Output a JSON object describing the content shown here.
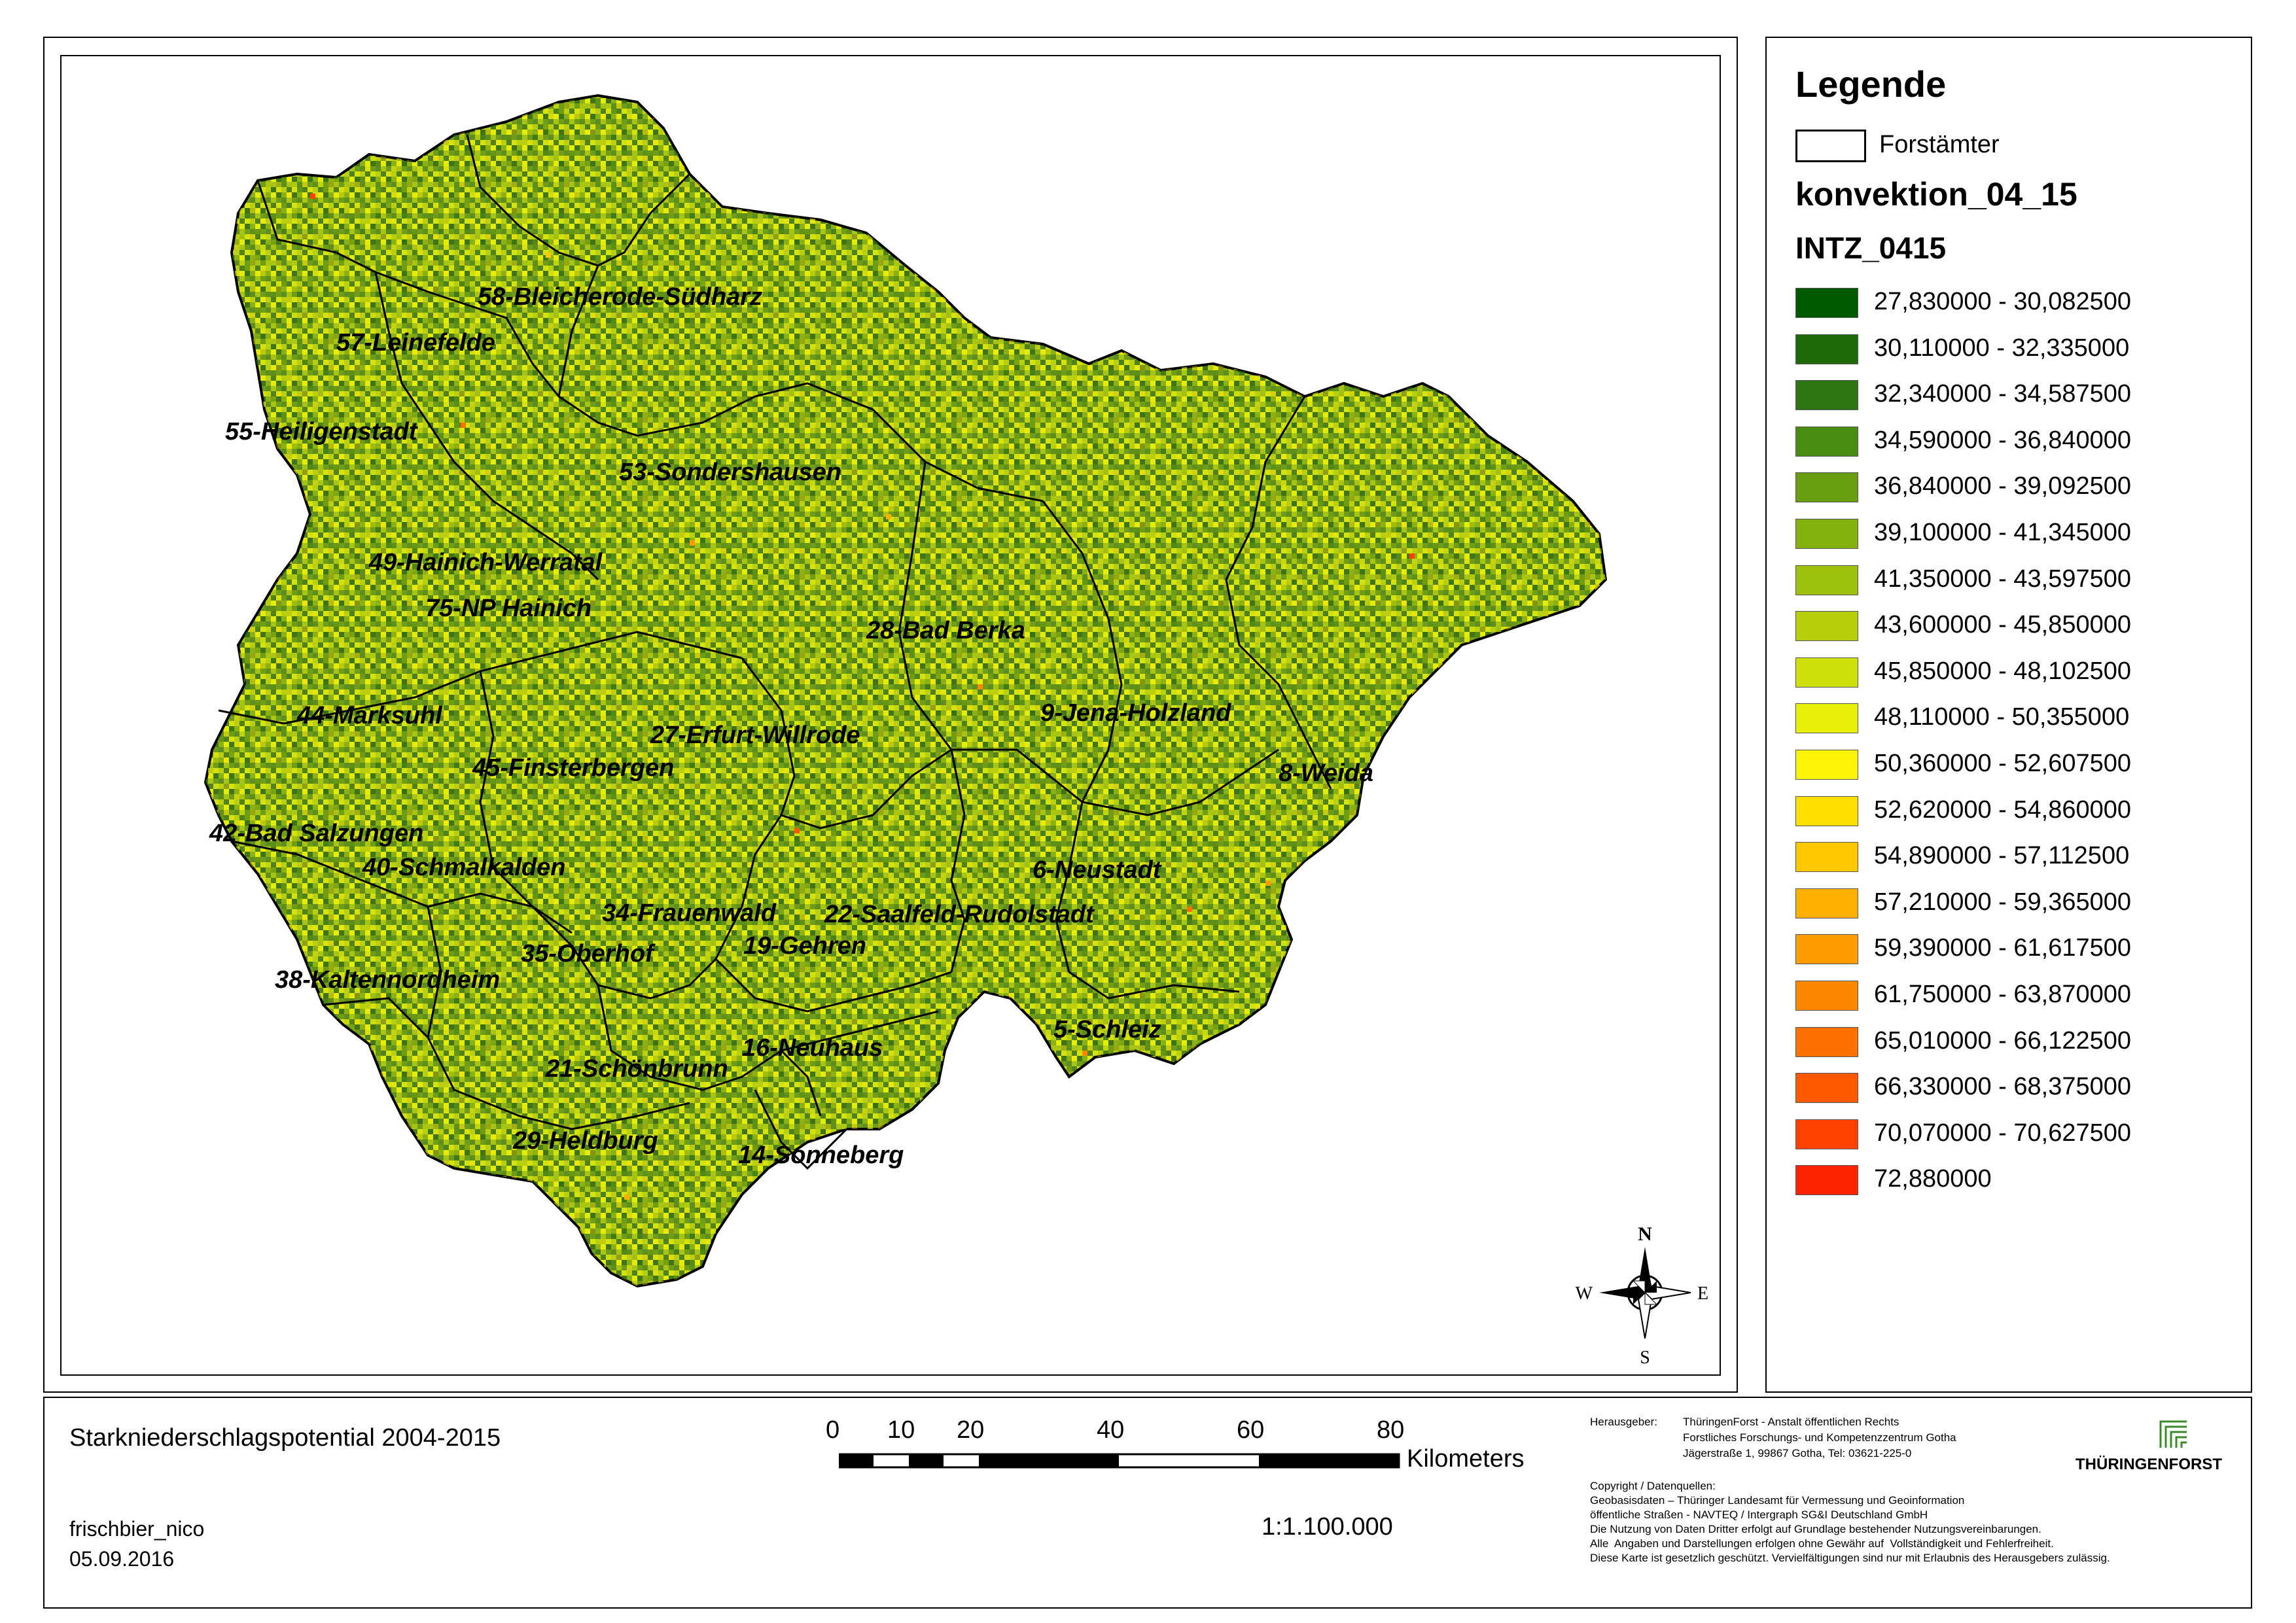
{
  "legend": {
    "title": "Legende",
    "outline_label": "Forstämter",
    "layer_name": "konvektion_04_15",
    "field_name": "INTZ_0415",
    "classes": [
      {
        "label": "27,830000 - 30,082500",
        "color": "#005a00"
      },
      {
        "label": "30,110000 - 32,335000",
        "color": "#1e6a0a"
      },
      {
        "label": "32,340000 - 34,587500",
        "color": "#2f7612"
      },
      {
        "label": "34,590000 - 36,840000",
        "color": "#4a8c14"
      },
      {
        "label": "36,840000 - 39,092500",
        "color": "#689f12"
      },
      {
        "label": "39,100000 - 41,345000",
        "color": "#84b10e"
      },
      {
        "label": "41,350000 - 43,597500",
        "color": "#9cc00c"
      },
      {
        "label": "43,600000 - 45,850000",
        "color": "#b4cf0a"
      },
      {
        "label": "45,850000 - 48,102500",
        "color": "#cee00a"
      },
      {
        "label": "48,110000 - 50,355000",
        "color": "#e8ef08"
      },
      {
        "label": "50,360000 - 52,607500",
        "color": "#fbf406"
      },
      {
        "label": "52,620000 - 54,860000",
        "color": "#fde000"
      },
      {
        "label": "54,890000 - 57,112500",
        "color": "#fdc800"
      },
      {
        "label": "57,210000 - 59,365000",
        "color": "#fdb000"
      },
      {
        "label": "59,390000 - 61,617500",
        "color": "#fd9c00"
      },
      {
        "label": "61,750000 - 63,870000",
        "color": "#fd8700"
      },
      {
        "label": "65,010000 - 66,122500",
        "color": "#fd7100"
      },
      {
        "label": "66,330000 - 68,375000",
        "color": "#fd5a00"
      },
      {
        "label": "70,070000 - 70,627500",
        "color": "#fd4200"
      },
      {
        "label": "72,880000",
        "color": "#fd2200"
      }
    ]
  },
  "map": {
    "districts": [
      "58-Bleicherode-Südharz",
      "57-Leinefelde",
      "55-Heiligenstadt",
      "53-Sondershausen",
      "49-Hainich-Werratal",
      "75-NP Hainich",
      "28-Bad Berka",
      "44-Marksuhl",
      "27-Erfurt-Willrode",
      "9-Jena-Holzland",
      "45-Finsterbergen",
      "8-Weida",
      "42-Bad Salzungen",
      "40-Schmalkalden",
      "6-Neustadt",
      "34-Frauenwald",
      "22-Saalfeld-Rudolstadt",
      "19-Gehren",
      "35-Oberhof",
      "38-Kaltennordheim",
      "5-Schleiz",
      "16-Neuhaus",
      "21-Schönbrunn",
      "29-Heldburg",
      "14-Sonneberg"
    ],
    "north_arrow": {
      "n": "N",
      "s": "S",
      "e": "E",
      "w": "W"
    }
  },
  "footer": {
    "title": "Starkniederschlagspotential 2004-2015",
    "author": "frischbier_nico",
    "date": "05.09.2016",
    "scale_ratio": "1:1.100.000",
    "scale_ticks": [
      "0",
      "10",
      "20",
      "40",
      "60",
      "80"
    ],
    "scale_unit": "Kilometers",
    "publisher_label": "Herausgeber:",
    "publisher_lines": [
      "ThüringenForst - Anstalt öffentlichen Rechts",
      "Forstliches Forschungs- und Kompetenzzentrum Gotha",
      "Jägerstraße 1, 99867 Gotha, Tel: 03621-225-0"
    ],
    "copyright_lines": [
      "Copyright / Datenquellen:",
      "Geobasisdaten – Thüringer Landesamt für Vermessung und Geoinformation",
      "öffentliche Straßen - NAVTEQ / Intergraph SG&I Deutschland GmbH",
      "Die Nutzung von Daten Dritter erfolgt auf Grundlage bestehender Nutzungsvereinbarungen.",
      "Alle  Angaben und Darstellungen erfolgen ohne Gewähr auf  Vollständigkeit und Fehlerfreiheit.",
      "Diese Karte ist gesetzlich geschützt. Vervielfältigungen sind nur mit Erlaubnis des Herausgebers zulässig."
    ],
    "logo_text": "THÜRINGENFORST"
  }
}
